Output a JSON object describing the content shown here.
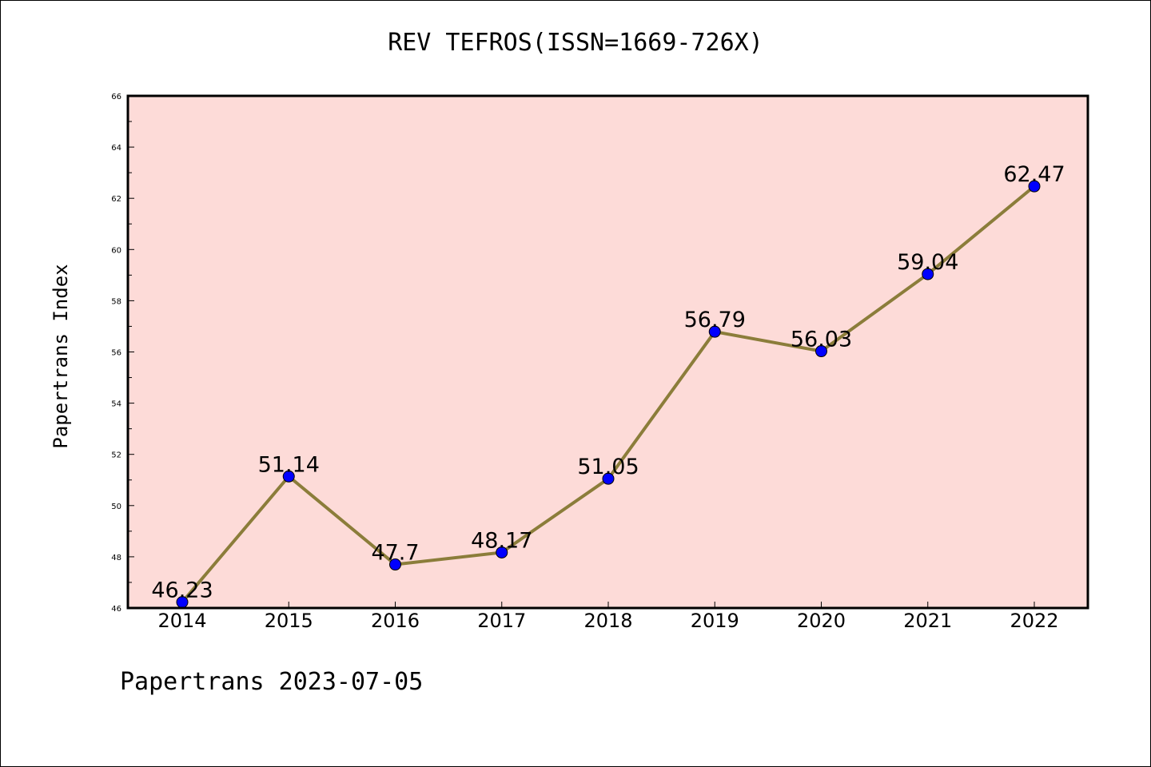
{
  "chart_data": {
    "type": "line",
    "title": "REV TEFROS(ISSN=1669-726X)",
    "ylabel": "Papertrans Index",
    "xlabel": "",
    "categories": [
      "2014",
      "2015",
      "2016",
      "2017",
      "2018",
      "2019",
      "2020",
      "2021",
      "2022"
    ],
    "series": [
      {
        "values": [
          46.23,
          51.14,
          47.7,
          48.17,
          51.05,
          56.79,
          56.03,
          59.04,
          62.47
        ],
        "labels": [
          "46.23",
          "51.14",
          "47.7",
          "48.17",
          "51.05",
          "56.79",
          "56.03",
          "59.04",
          "62.47"
        ]
      }
    ],
    "ylim": [
      46,
      66
    ],
    "yticks": [
      "46",
      "48",
      "50",
      "52",
      "54",
      "56",
      "58",
      "60",
      "62",
      "64",
      "66"
    ],
    "grid": false,
    "legend": "none",
    "colors": {
      "plot_background": "#fddbd8",
      "line": "#8b7d3a",
      "marker": "#0000ff"
    }
  },
  "footer": "Papertrans 2023-07-05"
}
